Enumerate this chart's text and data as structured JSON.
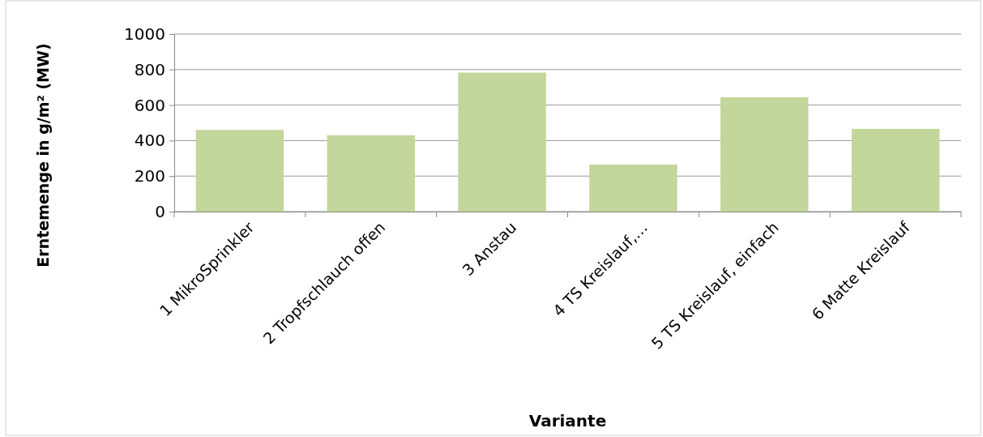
{
  "chart_data": {
    "type": "bar",
    "xlabel": "Variante",
    "ylabel": "Erntemenge in g/m² (MW)",
    "categories": [
      "1 MikroSprinkler",
      "2 Tropfschlauch offen",
      "3 Anstau",
      "4 TS Kreislauf,…",
      "5 TS Kreislauf, einfach",
      "6 Matte Kreislauf"
    ],
    "values": [
      460,
      430,
      783,
      265,
      644,
      466
    ],
    "color": "#c3d69b",
    "ylim": [
      0,
      1000
    ],
    "yticks": [
      0,
      200,
      400,
      600,
      800,
      1000
    ],
    "grid": "y"
  }
}
